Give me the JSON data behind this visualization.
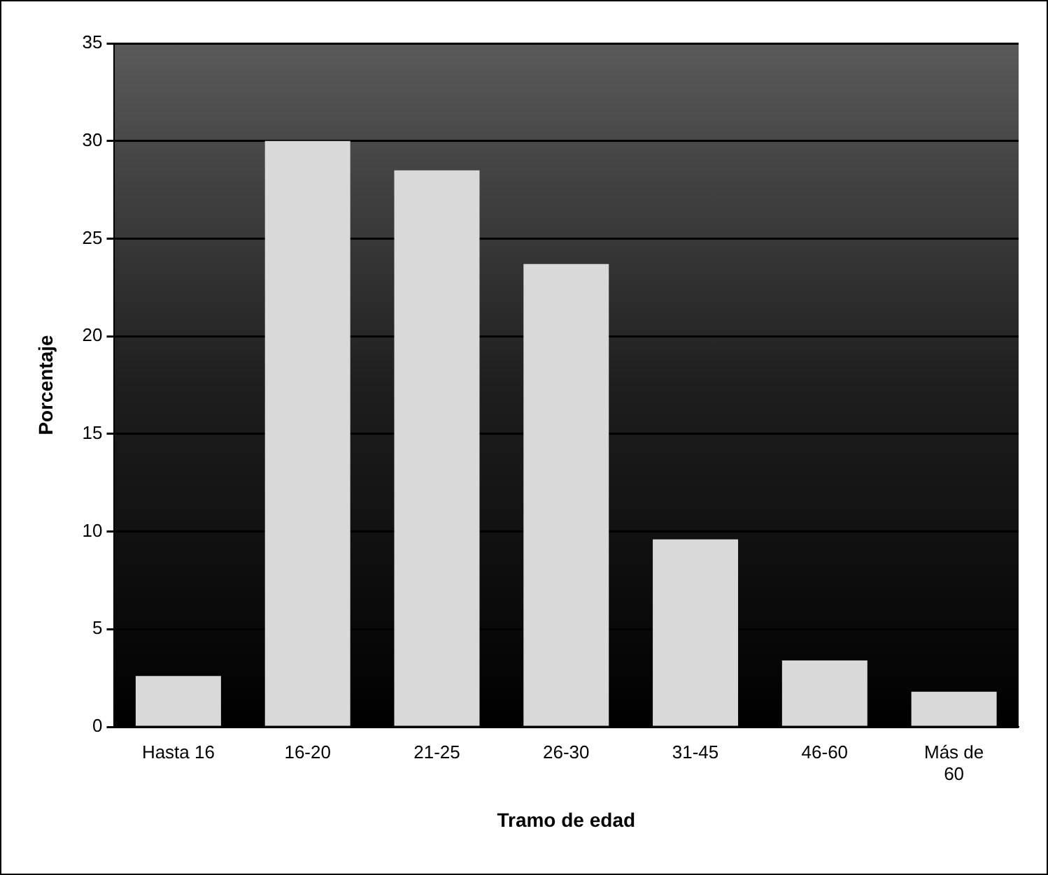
{
  "chart_data": {
    "type": "bar",
    "xlabel": "Tramo de edad",
    "ylabel": "Porcentaje",
    "categories": [
      "Hasta 16",
      "16-20",
      "21-25",
      "26-30",
      "31-45",
      "46-60",
      "Más de 60"
    ],
    "values": [
      2.6,
      30,
      28.5,
      23.7,
      9.6,
      3.4,
      1.8
    ],
    "color": "#d9d9d9",
    "ylim": [
      0,
      35
    ],
    "yticks": [
      0,
      5,
      10,
      15,
      20,
      25,
      30,
      35
    ],
    "grid": "y",
    "legend": false
  }
}
